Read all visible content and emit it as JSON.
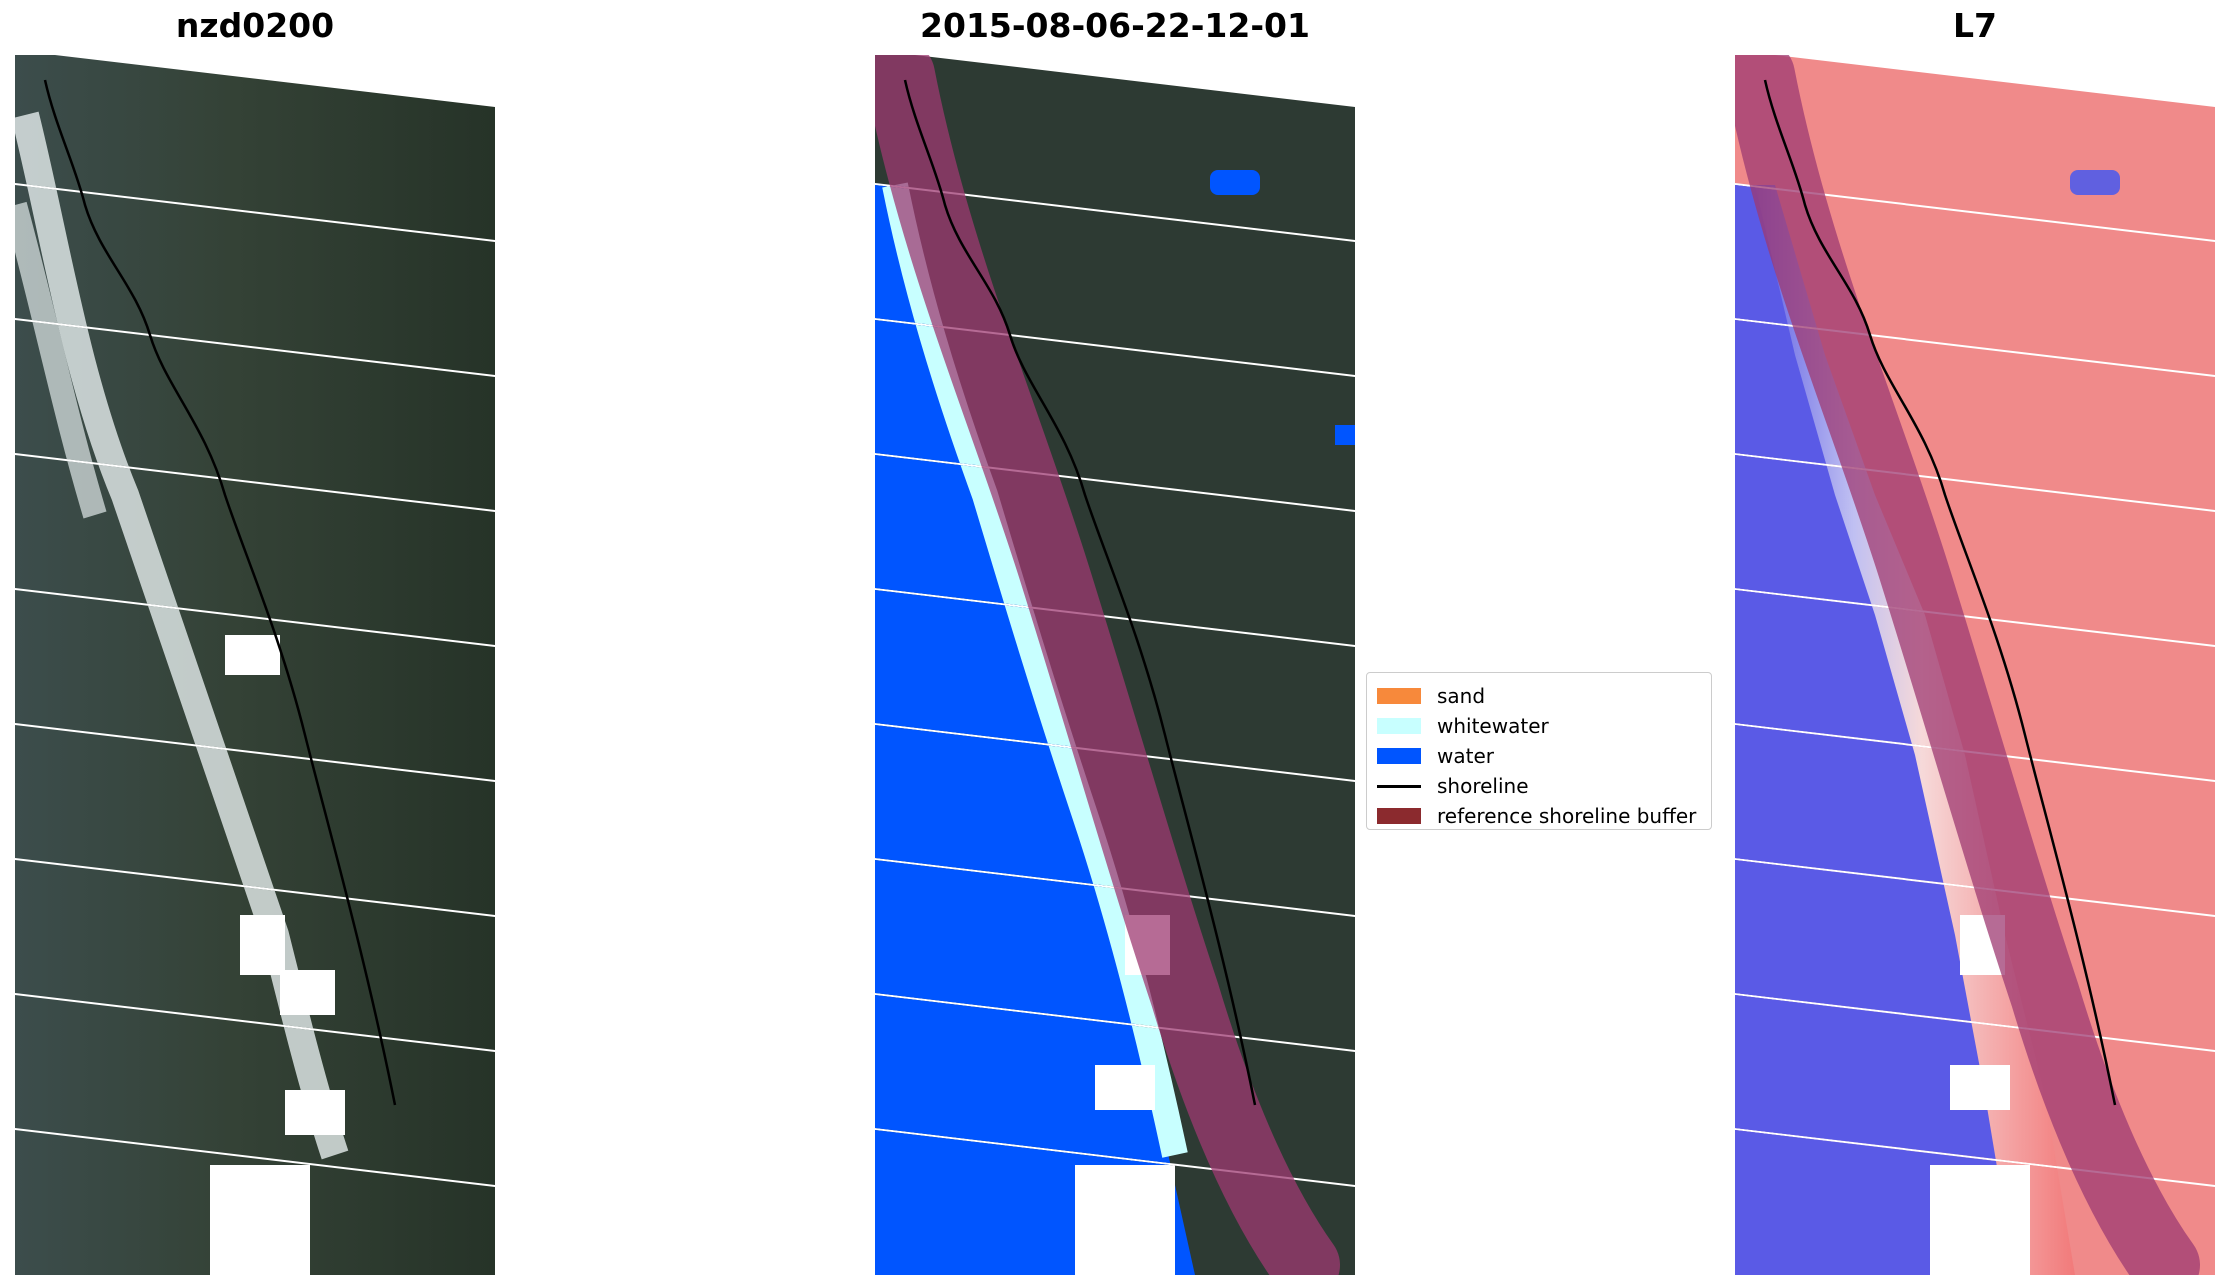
{
  "panels": [
    {
      "title": "nzd0200"
    },
    {
      "title": "2015-08-06-22-12-01"
    },
    {
      "title": "L7"
    }
  ],
  "legend": {
    "items": [
      {
        "label": "sand",
        "color": "#f7893b"
      },
      {
        "label": "whitewater",
        "color": "#c8ffff"
      },
      {
        "label": "water",
        "color": "#0055ff"
      },
      {
        "label": "shoreline",
        "color": "#000000"
      },
      {
        "label": "reference shoreline buffer",
        "color": "#8b2a2e"
      }
    ]
  },
  "colors": {
    "land": "#2b3a33",
    "ocean_rgb": "#3a4a4a",
    "cloud": "#e6eeee",
    "mndwi_negative": "#f27a7a",
    "mndwi_positive": "#5a5ae6",
    "buffer_overlay": "#9e3a72"
  }
}
